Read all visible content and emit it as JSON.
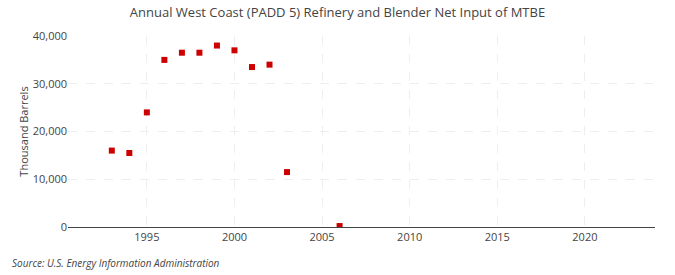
{
  "chart_data": {
    "type": "scatter",
    "title": "Annual West Coast (PADD 5) Refinery and Blender Net Input of MTBE",
    "ylabel": "Thousand Barrels",
    "annotations": [
      "Source: U.S. Energy Information Administration"
    ],
    "x": [
      1993,
      1994,
      1995,
      1996,
      1997,
      1998,
      1999,
      2000,
      2001,
      2002,
      2003,
      2006
    ],
    "values": [
      16000,
      15500,
      24000,
      35000,
      36500,
      36500,
      38000,
      37000,
      33500,
      34000,
      11500,
      200
    ],
    "color": "#cc0000",
    "marker": "square",
    "xlim": [
      1990.5,
      2024
    ],
    "xticks": [
      1995,
      2000,
      2005,
      2010,
      2015,
      2020
    ],
    "ylim": [
      0,
      40000
    ],
    "yticks": [
      0,
      {
        "value": 10000,
        "label": "10,000"
      },
      {
        "value": 20000,
        "label": "20,000"
      },
      {
        "value": 30000,
        "label": "30,000"
      },
      {
        "value": 40000,
        "label": "40,000"
      }
    ],
    "grid": true
  }
}
